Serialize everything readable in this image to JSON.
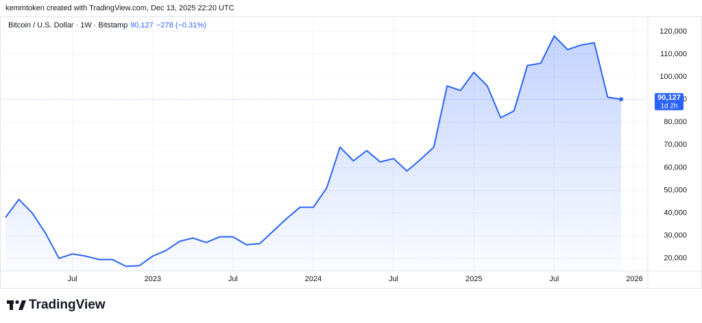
{
  "chart_data": {
    "type": "area",
    "credit": "kemmtoken created with TradingView.com, Dec 13, 2025 22:20 UTC",
    "title": "Bitcoin / U.S. Dollar · 1W · Bitstamp",
    "last_price": "90,127",
    "change": "−278 (−0.31%)",
    "countdown": "1d 2h",
    "brand": "TradingView",
    "color": "#2962ff",
    "grid": true,
    "x": [
      "2022-02",
      "2022-03",
      "2022-04",
      "2022-05",
      "2022-06",
      "2022-07",
      "2022-08",
      "2022-09",
      "2022-10",
      "2022-11",
      "2022-12",
      "2023-01",
      "2023-02",
      "2023-03",
      "2023-04",
      "2023-05",
      "2023-06",
      "2023-07",
      "2023-08",
      "2023-09",
      "2023-10",
      "2023-11",
      "2023-12",
      "2024-01",
      "2024-02",
      "2024-03",
      "2024-04",
      "2024-05",
      "2024-06",
      "2024-07",
      "2024-08",
      "2024-09",
      "2024-10",
      "2024-11",
      "2024-12",
      "2025-01",
      "2025-02",
      "2025-03",
      "2025-04",
      "2025-05",
      "2025-06",
      "2025-07",
      "2025-08",
      "2025-09",
      "2025-10",
      "2025-11",
      "2025-12"
    ],
    "values": [
      38000,
      46000,
      40000,
      31000,
      20000,
      22000,
      21000,
      19500,
      19500,
      16500,
      16800,
      21000,
      23500,
      27500,
      29000,
      27000,
      29500,
      29500,
      26000,
      26500,
      32000,
      37500,
      42500,
      42500,
      51000,
      69000,
      63000,
      67500,
      62500,
      64000,
      58500,
      63500,
      69000,
      96000,
      94000,
      102000,
      96000,
      82000,
      85000,
      105000,
      106000,
      118000,
      112000,
      114000,
      115000,
      91000,
      90127
    ],
    "xlim": [
      "2022-02",
      "2026-02"
    ],
    "xticks": [
      {
        "value": "2022-07",
        "label": "Jul"
      },
      {
        "value": "2023-01",
        "label": "2023"
      },
      {
        "value": "2023-07",
        "label": "Jul"
      },
      {
        "value": "2024-01",
        "label": "2024"
      },
      {
        "value": "2024-07",
        "label": "Jul"
      },
      {
        "value": "2025-01",
        "label": "2025"
      },
      {
        "value": "2025-07",
        "label": "Jul"
      },
      {
        "value": "2026-01",
        "label": "2026"
      }
    ],
    "ylim": [
      14500,
      126300
    ],
    "yticks": [
      {
        "value": 20000,
        "label": "20,000"
      },
      {
        "value": 30000,
        "label": "30,000"
      },
      {
        "value": 40000,
        "label": "40,000"
      },
      {
        "value": 50000,
        "label": "50,000"
      },
      {
        "value": 60000,
        "label": "60,000"
      },
      {
        "value": 70000,
        "label": "70,000"
      },
      {
        "value": 80000,
        "label": "80,000"
      },
      {
        "value": 90000,
        "label": "90,000"
      },
      {
        "value": 100000,
        "label": "100,000"
      },
      {
        "value": 110000,
        "label": "110,000"
      },
      {
        "value": 120000,
        "label": "120,000"
      }
    ]
  }
}
